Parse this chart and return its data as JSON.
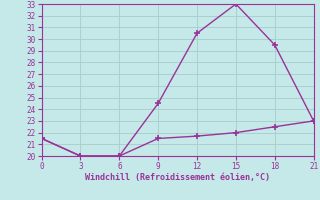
{
  "line1_x": [
    0,
    3,
    6,
    9,
    12,
    15,
    18,
    21
  ],
  "line1_y": [
    21.5,
    20.0,
    20.0,
    24.5,
    30.5,
    33.0,
    29.5,
    23.0
  ],
  "line2_x": [
    0,
    3,
    6,
    9,
    12,
    15,
    18,
    21
  ],
  "line2_y": [
    21.5,
    20.0,
    20.0,
    21.5,
    21.7,
    22.0,
    22.5,
    23.0
  ],
  "line_color": "#993399",
  "bg_color": "#C5E8E8",
  "grid_color": "#A8CCCC",
  "xlabel": "Windchill (Refroidissement éolien,°C)",
  "xlabel_color": "#993399",
  "xlim": [
    0,
    21
  ],
  "ylim": [
    20,
    33
  ],
  "xticks": [
    0,
    3,
    6,
    9,
    12,
    15,
    18,
    21
  ],
  "yticks": [
    20,
    21,
    22,
    23,
    24,
    25,
    26,
    27,
    28,
    29,
    30,
    31,
    32,
    33
  ],
  "tick_color": "#993399",
  "marker": "+",
  "marker_size": 5,
  "line_width": 1.0
}
